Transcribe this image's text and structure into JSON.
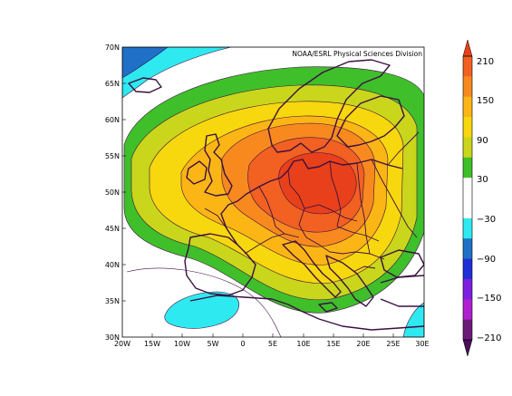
{
  "map": {
    "credit": "NOAA/ESRL Physical Sciences Division",
    "lat_labels": [
      "70N",
      "65N",
      "60N",
      "55N",
      "50N",
      "45N",
      "40N",
      "35N",
      "30N"
    ],
    "lon_labels": [
      "20W",
      "15W",
      "10W",
      "5W",
      "0",
      "5E",
      "10E",
      "15E",
      "20E",
      "25E",
      "30E"
    ],
    "extent": {
      "lon": [
        -20,
        30
      ],
      "lat": [
        30,
        70
      ]
    },
    "field_peak": {
      "lon": 11,
      "lat": 51.5,
      "value": 210
    }
  },
  "colorbar": {
    "labels": [
      "210",
      "150",
      "90",
      "30",
      "−30",
      "−90",
      "−150",
      "−210"
    ],
    "levels": [
      {
        "range": "210+",
        "color": "#e8401a"
      },
      {
        "range": "180-210",
        "color": "#f26122"
      },
      {
        "range": "150-180",
        "color": "#f8891f"
      },
      {
        "range": "120-150",
        "color": "#fbb515"
      },
      {
        "range": "90-120",
        "color": "#f7d70e"
      },
      {
        "range": "60-90",
        "color": "#c9d61c"
      },
      {
        "range": "30-60",
        "color": "#3fbf2a"
      },
      {
        "range": "0-30",
        "color": "#ffffff"
      },
      {
        "range": "-30-0",
        "color": "#ffffff"
      },
      {
        "range": "-60--30",
        "color": "#2fe9f0"
      },
      {
        "range": "-90--60",
        "color": "#1f70c6"
      },
      {
        "range": "-120--90",
        "color": "#1f2fd7"
      },
      {
        "range": "-150--120",
        "color": "#7d1fe0"
      },
      {
        "range": "-180--150",
        "color": "#b01fcf"
      },
      {
        "range": "-210--180",
        "color": "#6c1a7a"
      },
      {
        "range": "<-210",
        "color": "#4a0f5a"
      }
    ]
  }
}
